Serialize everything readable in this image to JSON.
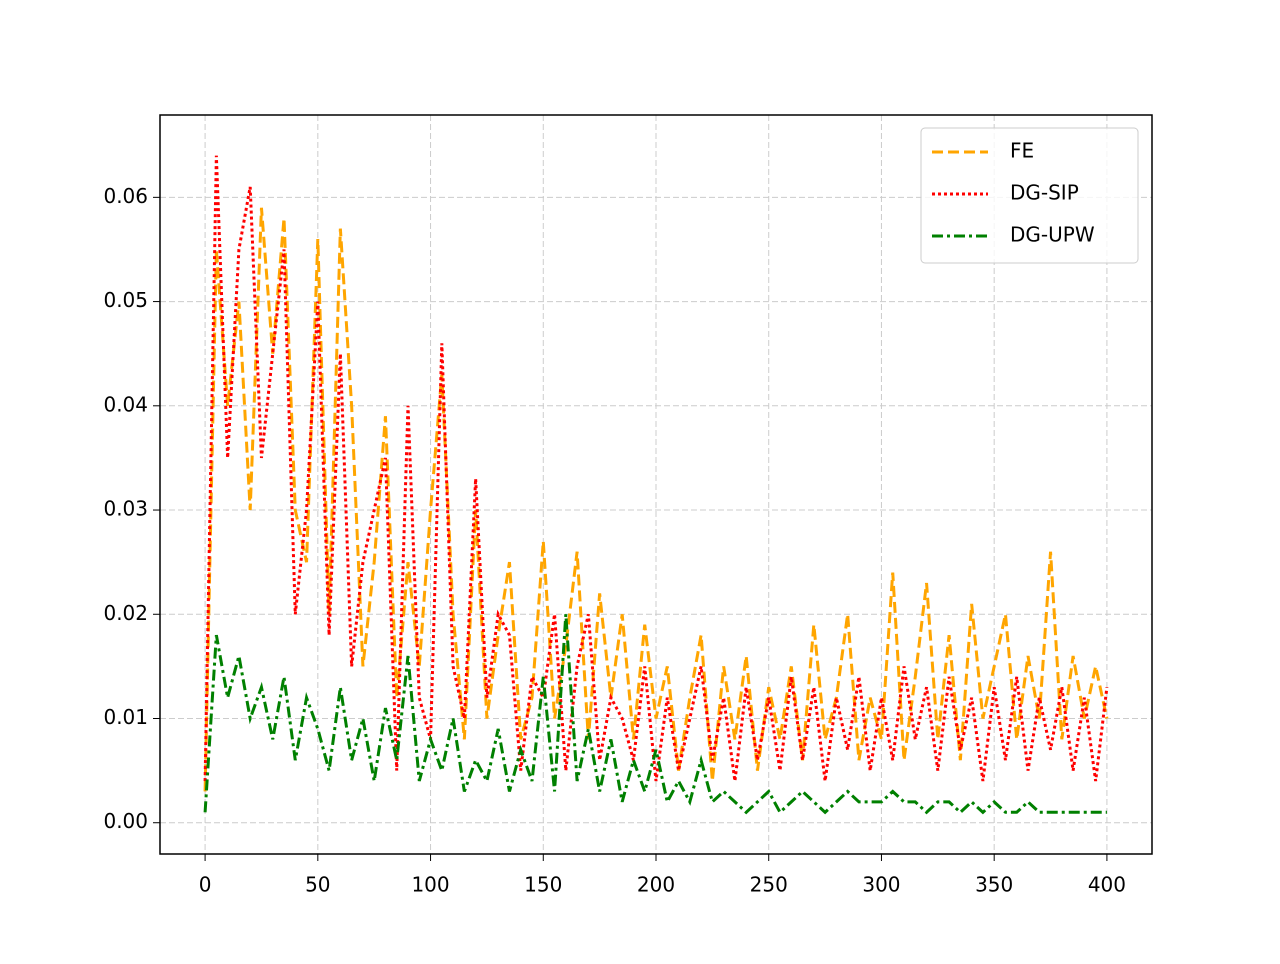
{
  "chart_data": {
    "type": "line",
    "x": [
      0,
      5,
      10,
      15,
      20,
      25,
      30,
      35,
      40,
      45,
      50,
      55,
      60,
      65,
      70,
      75,
      80,
      85,
      90,
      95,
      100,
      105,
      110,
      115,
      120,
      125,
      130,
      135,
      140,
      145,
      150,
      155,
      160,
      165,
      170,
      175,
      180,
      185,
      190,
      195,
      200,
      205,
      210,
      215,
      220,
      225,
      230,
      235,
      240,
      245,
      250,
      255,
      260,
      265,
      270,
      275,
      280,
      285,
      290,
      295,
      300,
      305,
      310,
      315,
      320,
      325,
      330,
      335,
      340,
      345,
      350,
      355,
      360,
      365,
      370,
      375,
      380,
      385,
      390,
      395,
      400
    ],
    "series": [
      {
        "name": "FE",
        "color": "#ffa500",
        "linestyle": "dashed",
        "values": [
          0.003,
          0.055,
          0.04,
          0.05,
          0.03,
          0.059,
          0.045,
          0.058,
          0.03,
          0.025,
          0.056,
          0.02,
          0.057,
          0.04,
          0.015,
          0.025,
          0.039,
          0.012,
          0.025,
          0.015,
          0.03,
          0.043,
          0.02,
          0.008,
          0.03,
          0.01,
          0.018,
          0.025,
          0.008,
          0.012,
          0.027,
          0.01,
          0.017,
          0.026,
          0.008,
          0.022,
          0.012,
          0.02,
          0.008,
          0.019,
          0.01,
          0.015,
          0.005,
          0.012,
          0.018,
          0.004,
          0.015,
          0.008,
          0.016,
          0.005,
          0.013,
          0.008,
          0.015,
          0.006,
          0.019,
          0.008,
          0.012,
          0.02,
          0.006,
          0.012,
          0.008,
          0.024,
          0.006,
          0.014,
          0.023,
          0.008,
          0.018,
          0.006,
          0.021,
          0.01,
          0.015,
          0.02,
          0.008,
          0.016,
          0.01,
          0.026,
          0.008,
          0.016,
          0.01,
          0.015,
          0.01
        ]
      },
      {
        "name": "DG-SIP",
        "color": "#ff0000",
        "linestyle": "dotted",
        "values": [
          0.004,
          0.064,
          0.035,
          0.055,
          0.061,
          0.035,
          0.045,
          0.055,
          0.02,
          0.03,
          0.05,
          0.018,
          0.045,
          0.015,
          0.025,
          0.03,
          0.035,
          0.005,
          0.04,
          0.012,
          0.008,
          0.046,
          0.015,
          0.01,
          0.033,
          0.012,
          0.02,
          0.018,
          0.005,
          0.014,
          0.012,
          0.02,
          0.005,
          0.015,
          0.02,
          0.006,
          0.012,
          0.01,
          0.006,
          0.015,
          0.004,
          0.012,
          0.005,
          0.01,
          0.015,
          0.006,
          0.012,
          0.004,
          0.013,
          0.006,
          0.012,
          0.005,
          0.014,
          0.006,
          0.013,
          0.004,
          0.012,
          0.007,
          0.014,
          0.005,
          0.012,
          0.006,
          0.015,
          0.008,
          0.013,
          0.005,
          0.014,
          0.007,
          0.012,
          0.004,
          0.013,
          0.006,
          0.014,
          0.005,
          0.012,
          0.007,
          0.013,
          0.005,
          0.012,
          0.004,
          0.013
        ]
      },
      {
        "name": "DG-UPW",
        "color": "#008000",
        "linestyle": "dashdot",
        "values": [
          0.001,
          0.018,
          0.012,
          0.016,
          0.01,
          0.013,
          0.008,
          0.014,
          0.006,
          0.012,
          0.009,
          0.005,
          0.013,
          0.006,
          0.01,
          0.004,
          0.011,
          0.006,
          0.016,
          0.004,
          0.008,
          0.005,
          0.01,
          0.003,
          0.006,
          0.004,
          0.009,
          0.003,
          0.007,
          0.004,
          0.014,
          0.003,
          0.02,
          0.004,
          0.009,
          0.003,
          0.008,
          0.002,
          0.006,
          0.003,
          0.007,
          0.002,
          0.004,
          0.002,
          0.006,
          0.002,
          0.003,
          0.002,
          0.001,
          0.002,
          0.003,
          0.001,
          0.002,
          0.003,
          0.002,
          0.001,
          0.002,
          0.003,
          0.002,
          0.002,
          0.002,
          0.003,
          0.002,
          0.002,
          0.001,
          0.002,
          0.002,
          0.001,
          0.002,
          0.001,
          0.002,
          0.001,
          0.001,
          0.002,
          0.001,
          0.001,
          0.001,
          0.001,
          0.001,
          0.001,
          0.001
        ]
      }
    ],
    "xlim": [
      -20,
      420
    ],
    "ylim": [
      -0.003,
      0.0679
    ],
    "xticks": [
      0,
      50,
      100,
      150,
      200,
      250,
      300,
      350,
      400
    ],
    "yticks": [
      {
        "value": 0,
        "label": "0.00"
      },
      0.01,
      0.02,
      0.03,
      0.04,
      0.05,
      0.06
    ],
    "grid": true,
    "legend": "upper right"
  }
}
